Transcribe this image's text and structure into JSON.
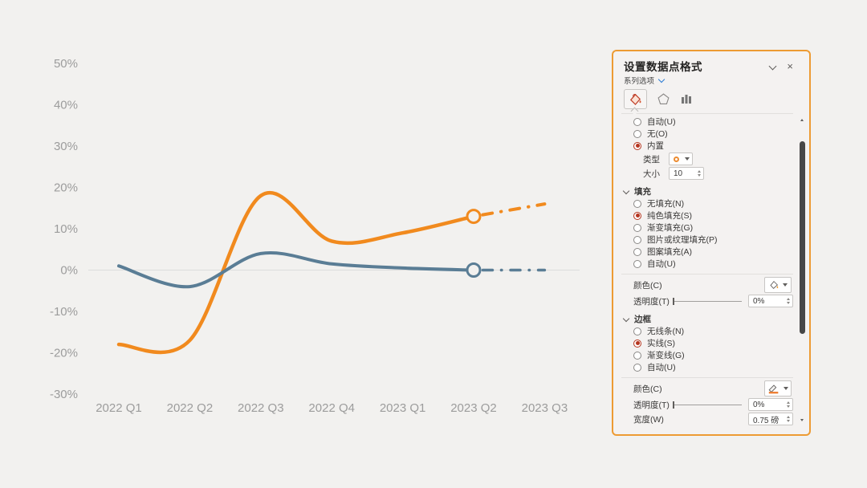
{
  "page": {
    "background": "#f2f1ef"
  },
  "chart_data": {
    "type": "line",
    "title": "",
    "categories": [
      "2022 Q1",
      "2022 Q2",
      "2022 Q3",
      "2022 Q4",
      "2023 Q1",
      "2023 Q2",
      "2023 Q3"
    ],
    "ytick_labels": [
      "50%",
      "40%",
      "30%",
      "20%",
      "10%",
      "0%",
      "-10%",
      "-20%",
      "-30%"
    ],
    "ytick_values": [
      50,
      40,
      30,
      20,
      10,
      0,
      -10,
      -20,
      -30
    ],
    "ylim": [
      -30,
      50
    ],
    "gridline_values": [
      0
    ],
    "legend": "none",
    "smooth": true,
    "series": [
      {
        "name": "orange-series",
        "color": "#F18A1E",
        "values": [
          -18,
          -17,
          18,
          7,
          9,
          13,
          16
        ],
        "solid_until_index": 5,
        "forecast_style": "dash-dot",
        "marker_index": 5,
        "marker": "open-circle",
        "line_width": 4.5
      },
      {
        "name": "blue-series",
        "color": "#5A7D95",
        "values": [
          1,
          -4,
          4,
          1.5,
          0.5,
          0,
          0
        ],
        "solid_until_index": 5,
        "forecast_style": "dash-dot",
        "marker_index": 5,
        "marker": "open-circle",
        "line_width": 4
      }
    ]
  },
  "panel": {
    "title": "设置数据点格式",
    "close_glyph": "×",
    "series_options_label": "系列选项",
    "tabs": [
      {
        "name": "fill-and-line",
        "selected": true
      },
      {
        "name": "effects",
        "selected": false
      },
      {
        "name": "series-options",
        "selected": false
      }
    ],
    "marker": {
      "option_auto": "自动(U)",
      "option_none": "无(O)",
      "option_builtin": "内置",
      "type_label": "类型",
      "size_label": "大小",
      "size_value": "10"
    },
    "fill": {
      "header": "填充",
      "options": [
        "无填充(N)",
        "纯色填充(S)",
        "渐变填充(G)",
        "图片或纹理填充(P)",
        "图案填充(A)",
        "自动(U)"
      ],
      "selected": "纯色填充(S)",
      "color_label": "颜色(C)",
      "transparency_label": "透明度(T)",
      "transparency_value": "0%"
    },
    "border": {
      "header": "边框",
      "options": [
        "无线条(N)",
        "实线(S)",
        "渐变线(G)",
        "自动(U)"
      ],
      "selected": "实线(S)",
      "color_label": "颜色(C)",
      "transparency_label": "透明度(T)",
      "transparency_value": "0%",
      "width_label": "宽度(W)",
      "width_value": "0.75 磅"
    },
    "accent_border_color": "#ED9B33"
  }
}
